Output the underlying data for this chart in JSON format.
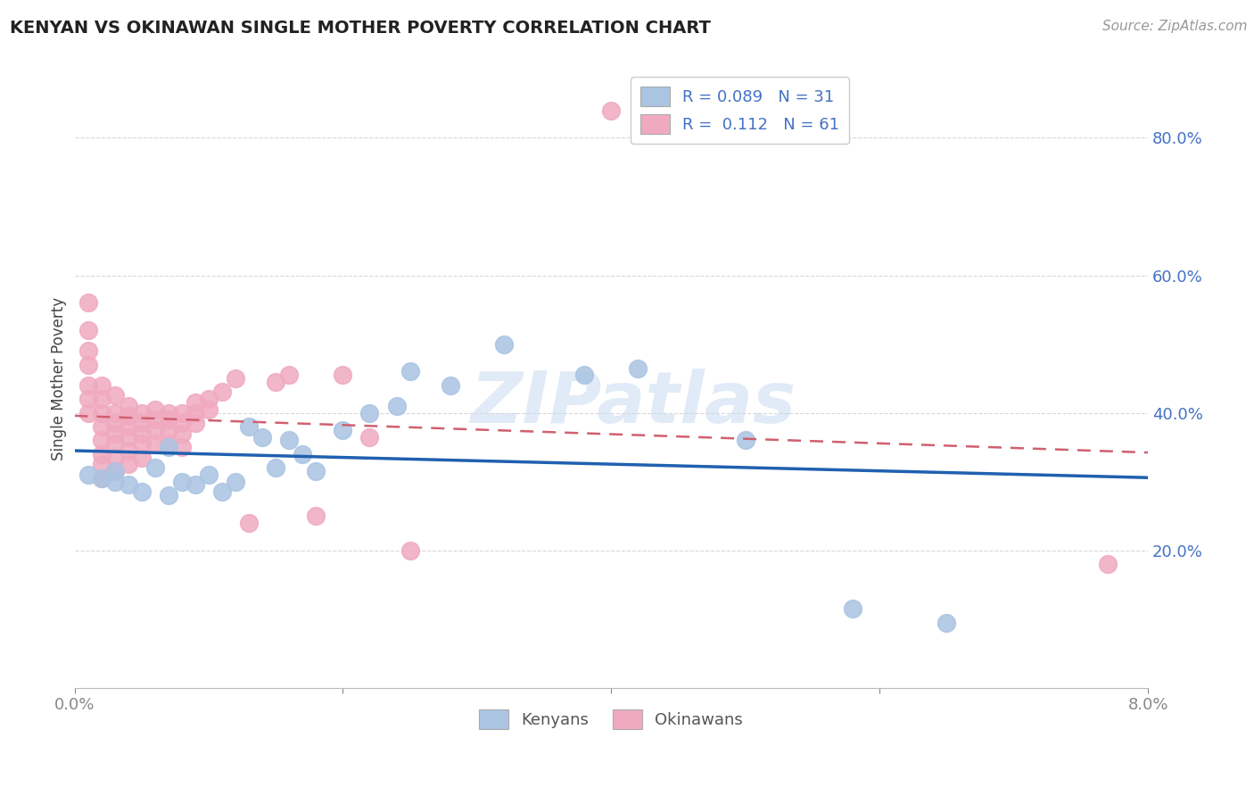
{
  "title": "KENYAN VS OKINAWAN SINGLE MOTHER POVERTY CORRELATION CHART",
  "source": "Source: ZipAtlas.com",
  "ylabel": "Single Mother Poverty",
  "xlim": [
    0.0,
    0.08
  ],
  "ylim": [
    0.0,
    0.9
  ],
  "xticks": [
    0.0,
    0.02,
    0.04,
    0.06,
    0.08
  ],
  "xticklabels": [
    "0.0%",
    "",
    "",
    "",
    "8.0%"
  ],
  "ytick_positions": [
    0.2,
    0.4,
    0.6,
    0.8
  ],
  "ytick_labels": [
    "20.0%",
    "40.0%",
    "60.0%",
    "80.0%"
  ],
  "legend_line1": "R = 0.089   N = 31",
  "legend_line2": "R =  0.112   N = 61",
  "kenya_color": "#aac4e2",
  "okinawa_color": "#f0aac0",
  "kenya_line_color": "#2060b0",
  "okinawa_line_color": "#d06070",
  "watermark_text": "ZIPatlas",
  "background_color": "#ffffff",
  "grid_color": "#d8d8d8",
  "kenya_x": [
    0.001,
    0.002,
    0.003,
    0.003,
    0.004,
    0.005,
    0.006,
    0.007,
    0.007,
    0.008,
    0.009,
    0.01,
    0.011,
    0.012,
    0.013,
    0.014,
    0.015,
    0.016,
    0.017,
    0.018,
    0.02,
    0.022,
    0.024,
    0.025,
    0.028,
    0.032,
    0.038,
    0.042,
    0.05,
    0.058,
    0.065
  ],
  "kenya_y": [
    0.31,
    0.305,
    0.3,
    0.315,
    0.295,
    0.285,
    0.32,
    0.35,
    0.28,
    0.3,
    0.295,
    0.31,
    0.285,
    0.3,
    0.38,
    0.365,
    0.32,
    0.36,
    0.34,
    0.315,
    0.375,
    0.4,
    0.41,
    0.46,
    0.44,
    0.5,
    0.455,
    0.465,
    0.36,
    0.115,
    0.095
  ],
  "okinawa_x": [
    0.001,
    0.001,
    0.001,
    0.001,
    0.001,
    0.001,
    0.001,
    0.002,
    0.002,
    0.002,
    0.002,
    0.002,
    0.002,
    0.002,
    0.002,
    0.003,
    0.003,
    0.003,
    0.003,
    0.003,
    0.003,
    0.003,
    0.004,
    0.004,
    0.004,
    0.004,
    0.004,
    0.004,
    0.005,
    0.005,
    0.005,
    0.005,
    0.005,
    0.006,
    0.006,
    0.006,
    0.006,
    0.007,
    0.007,
    0.007,
    0.007,
    0.008,
    0.008,
    0.008,
    0.008,
    0.009,
    0.009,
    0.009,
    0.01,
    0.01,
    0.011,
    0.012,
    0.013,
    0.015,
    0.016,
    0.018,
    0.02,
    0.022,
    0.025,
    0.04,
    0.077
  ],
  "okinawa_y": [
    0.56,
    0.52,
    0.49,
    0.47,
    0.44,
    0.42,
    0.4,
    0.44,
    0.42,
    0.4,
    0.38,
    0.36,
    0.34,
    0.325,
    0.305,
    0.425,
    0.4,
    0.385,
    0.37,
    0.355,
    0.335,
    0.315,
    0.41,
    0.395,
    0.38,
    0.365,
    0.345,
    0.325,
    0.4,
    0.385,
    0.37,
    0.355,
    0.335,
    0.405,
    0.39,
    0.375,
    0.355,
    0.4,
    0.39,
    0.375,
    0.355,
    0.4,
    0.385,
    0.37,
    0.35,
    0.415,
    0.4,
    0.385,
    0.42,
    0.405,
    0.43,
    0.45,
    0.24,
    0.445,
    0.455,
    0.25,
    0.455,
    0.365,
    0.2,
    0.84,
    0.18
  ]
}
